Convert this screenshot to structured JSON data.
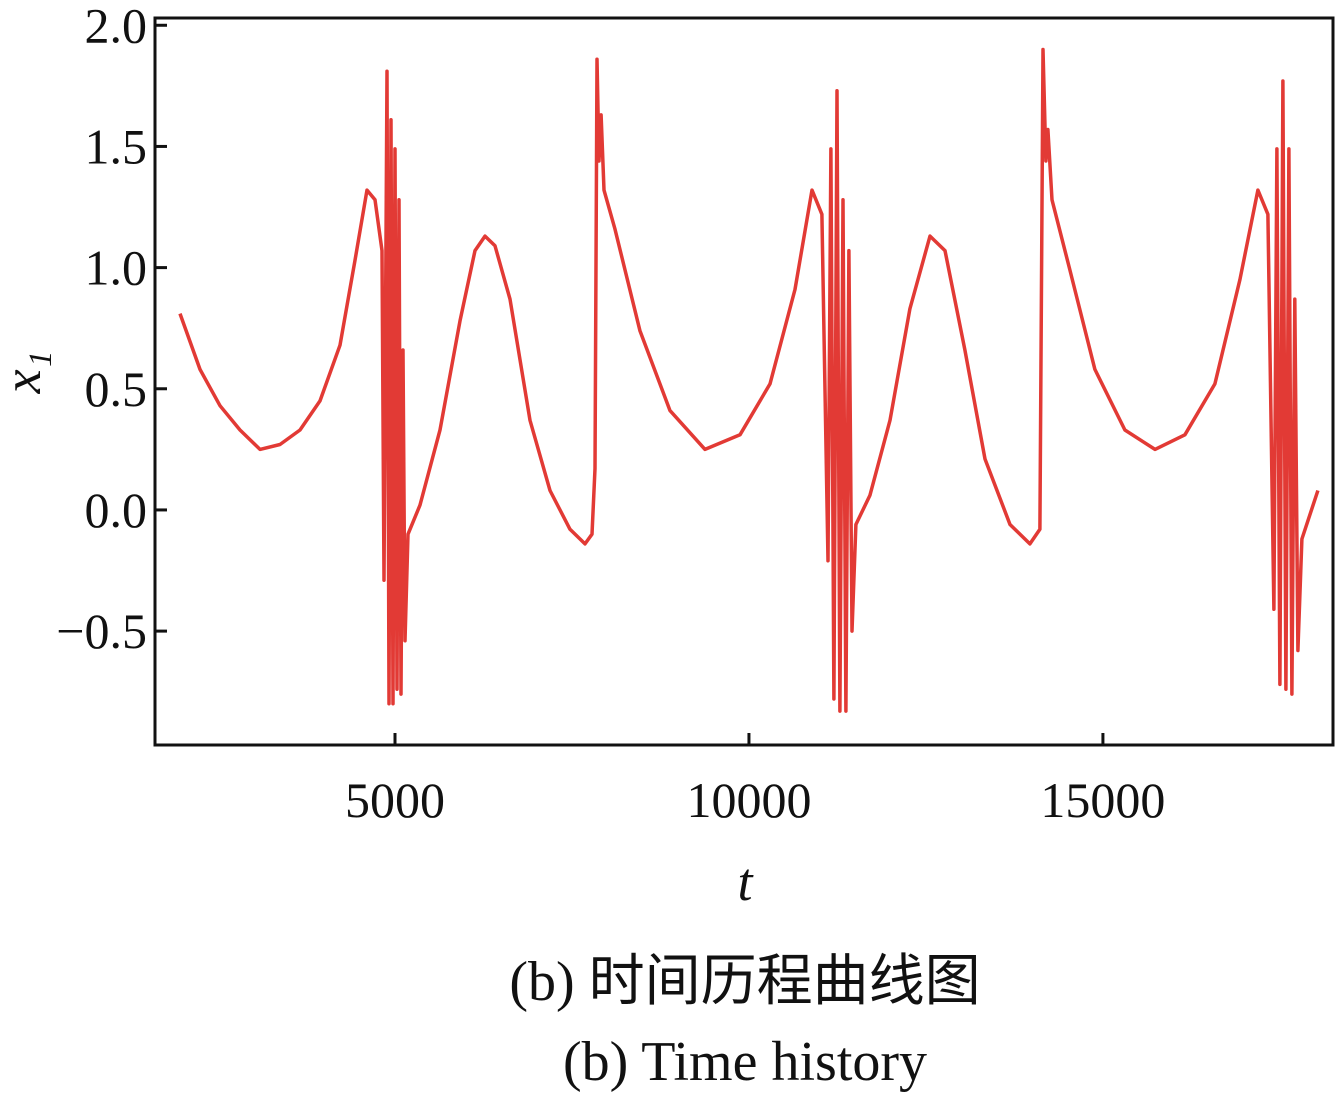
{
  "chart_data": {
    "type": "line",
    "x_label": "t",
    "y_label": "x₁",
    "caption_zh": "(b)  时间历程曲线图",
    "caption_en": "(b)  Time history",
    "color": "#e23a35",
    "xlim": [
      1610,
      18250
    ],
    "ylim": [
      -0.97,
      2.03
    ],
    "xticks": [
      5000,
      10000,
      15000
    ],
    "yticks": [
      {
        "value": -0.5,
        "label": "−0.5"
      },
      {
        "value": 0,
        "label": "0.0"
      },
      {
        "value": 0.5,
        "label": "0.5"
      },
      {
        "value": 1,
        "label": "1.0"
      },
      {
        "value": 1.5,
        "label": "1.5"
      },
      {
        "value": 2,
        "label": "2.0"
      }
    ],
    "x": [
      1963,
      2246,
      2528,
      2811,
      3093,
      3376,
      3658,
      3941,
      4223,
      4435,
      4605,
      4718,
      4816,
      4845,
      4887,
      4915,
      4944,
      4972,
      5000,
      5028,
      5056,
      5085,
      5113,
      5141,
      5184,
      5353,
      5636,
      5918,
      6130,
      6271,
      6413,
      6624,
      6907,
      7189,
      7472,
      7684,
      7783,
      7825,
      7854,
      7882,
      7911,
      7953,
      8107,
      8460,
      8884,
      9379,
      9873,
      10297,
      10650,
      10890,
      11031,
      11116,
      11158,
      11200,
      11243,
      11285,
      11328,
      11370,
      11412,
      11455,
      11511,
      11709,
      11992,
      12274,
      12557,
      12769,
      13051,
      13334,
      13687,
      13969,
      14110,
      14153,
      14195,
      14223,
      14280,
      14534,
      14887,
      15311,
      15735,
      16158,
      16582,
      16935,
      17189,
      17330,
      17415,
      17457,
      17500,
      17542,
      17584,
      17627,
      17669,
      17711,
      17754,
      17810,
      18036
    ],
    "values": [
      0.81,
      0.58,
      0.43,
      0.33,
      0.25,
      0.27,
      0.33,
      0.45,
      0.68,
      1.03,
      1.32,
      1.28,
      1.07,
      -0.29,
      1.81,
      -0.8,
      1.61,
      -0.8,
      1.49,
      -0.74,
      1.28,
      -0.76,
      0.66,
      -0.54,
      -0.1,
      0.02,
      0.33,
      0.78,
      1.07,
      1.13,
      1.09,
      0.87,
      0.37,
      0.08,
      -0.08,
      -0.14,
      -0.1,
      0.17,
      1.86,
      1.44,
      1.63,
      1.32,
      1.16,
      0.74,
      0.41,
      0.25,
      0.31,
      0.52,
      0.91,
      1.32,
      1.22,
      -0.21,
      1.49,
      -0.78,
      1.73,
      -0.83,
      1.28,
      -0.83,
      1.07,
      -0.5,
      -0.06,
      0.06,
      0.37,
      0.83,
      1.13,
      1.07,
      0.66,
      0.21,
      -0.06,
      -0.14,
      -0.08,
      1.9,
      1.44,
      1.57,
      1.28,
      0.99,
      0.58,
      0.33,
      0.25,
      0.31,
      0.52,
      0.95,
      1.32,
      1.22,
      -0.41,
      1.49,
      -0.72,
      1.77,
      -0.74,
      1.49,
      -0.76,
      0.87,
      -0.58,
      -0.12,
      0.08
    ]
  }
}
